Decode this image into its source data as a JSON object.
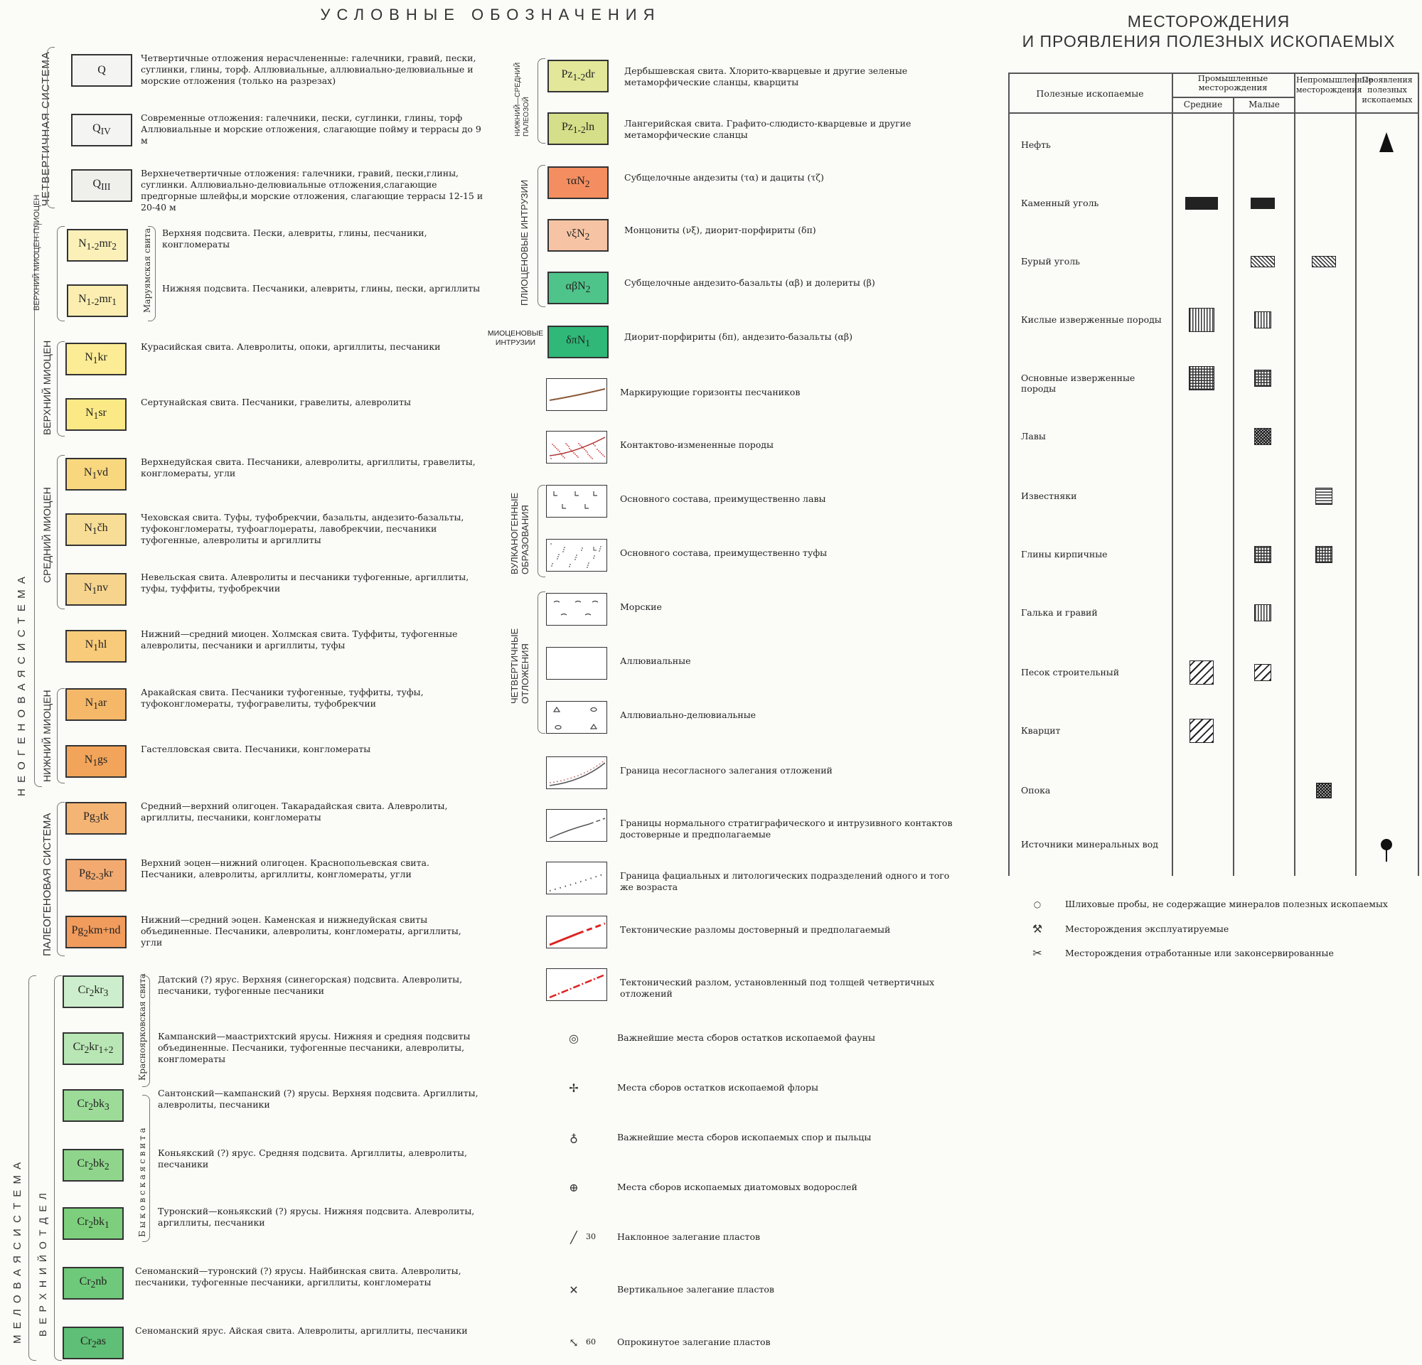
{
  "legend_title": "УСЛОВНЫЕ ОБОЗНАЧЕНИЯ",
  "minerals_title_1": "МЕСТОРОЖДЕНИЯ",
  "minerals_title_2": "И ПРОЯВЛЕНИЯ ПОЛЕЗНЫХ ИСКОПАЕМЫХ",
  "groups": {
    "quaternary": "ЧЕТВЕРТИЧНАЯ СИСТЕМА",
    "neogene": "Н Е О Г Е Н О В А Я   С И С Т Е М А",
    "upper_miocene_pliocene": "ВЕРХНИЙ МИОЦЕН-ПЛИОЦЕН",
    "maruyama": "Маруямская свита",
    "upper_miocene": "ВЕРХНИЙ МИОЦЕН",
    "middle_miocene": "СРЕДНИЙ МИОЦЕН",
    "lower_miocene": "НИЖНИЙ МИОЦЕН",
    "paleogene": "ПАЛЕОГЕНОВАЯ СИСТЕМА",
    "cretaceous": "М Е Л О В А Я   С И С Т Е М А",
    "upper_division": "В Е Р Х Н И Й   О Т Д Е Л",
    "krasnoyarkovskaya": "Красноярковская свита",
    "bykovskaya": "Б ы к о в с к а я   с в и т а",
    "lower_middle_paleozoic": "НИЖНИЙ—СРЕДНИЙ ПАЛЕОЗОЙ",
    "pliocene_intrusions": "ПЛИОЦЕНОВЫЕ ИНТРУЗИИ",
    "miocene_intrusions": "МИОЦЕНОВЫЕ ИНТРУЗИИ",
    "volcanogenic": "ВУЛКАНОГЕННЫЕ ОБРАЗОВАНИЯ",
    "quaternary_deposits": "ЧЕТВЕРТИЧНЫЕ ОТЛОЖЕНИЯ"
  },
  "units_left": [
    {
      "code": "Q",
      "color": "#f4f4f2",
      "desc": "Четвертичные отложения нерасчлененные: галечники, гравий, пески, суглинки, глины, торф. Аллювиальные, аллювиально-делювиальные и морские отложения (только на разрезах)"
    },
    {
      "code": "QIV",
      "color": "#f4f4f2",
      "desc": "Современные отложения: галечники, пески, суглинки, глины, торф Аллювиальные и морские отложения, слагающие пойму и террасы до 9 м"
    },
    {
      "code": "QIII",
      "color": "#efefec",
      "desc": "Верхнечетвертичные отложения: галечники, гравий, пески,глины, суглинки. Аллювиально-делювиальные отложения,слагающие предгорные шлейфы,и морские отложения, слагающие террасы 12-15 и 20-40 м"
    },
    {
      "code": "N1-2mr2",
      "color": "#fbf1b8",
      "desc": "Верхняя подсвита. Пески, алевриты, глины, песчаники, конгломераты"
    },
    {
      "code": "N1-2mr1",
      "color": "#fbeeb0",
      "desc": "Нижняя подсвита. Песчаники, алевриты, глины, пески, аргиллиты"
    },
    {
      "code": "N1kr",
      "color": "#fbec95",
      "desc": "Курасийская свита. Алевролиты, опоки, аргиллиты, песчаники"
    },
    {
      "code": "N1sr",
      "color": "#fbe985",
      "desc": "Сертунайская свита. Песчаники, гравелиты, алевролиты"
    },
    {
      "code": "N1vd",
      "color": "#f8d77f",
      "desc": "Верхнедуйская свита. Песчаники, алевролиты, аргиллиты, гравелиты, конгломераты, угли"
    },
    {
      "code": "N1čh",
      "color": "#f7dd96",
      "desc": "Чеховская свита. Туфы, туфобрекчии, базальты, андезито-базальты, туфоконгломераты, туфоаглομераты, лавобрекчии, песчаники туфогенные, алевролиты и аргиллиты"
    },
    {
      "code": "N1nv",
      "color": "#f6d48d",
      "desc": "Невельская свита. Алевролиты и песчаники туфогенные, аргиллиты, туфы, туффиты, туфобрекчии"
    },
    {
      "code": "N1hl",
      "color": "#f8cb7a",
      "desc": "Нижний—средний миоцен. Холмская свита. Туффиты, туфогенные алевролиты, песчаники и аргиллиты, туфы"
    },
    {
      "code": "N1ar",
      "color": "#f5b869",
      "desc": "Аракайская свита. Песчаники туфогенные, туффиты, туфы, туфоконгломераты, туфогравелиты, туфобрекчии"
    },
    {
      "code": "N1gs",
      "color": "#f2a55a",
      "desc": "Гастелловская свита. Песчаники, конгломераты"
    },
    {
      "code": "Pg3tk",
      "color": "#f4b474",
      "desc": "Средний—верхний олигоцен. Такарадайская свита. Алевролиты, аргиллиты, песчаники, конгломераты"
    },
    {
      "code": "Pg2-3kr",
      "color": "#f3aa70",
      "desc": "Верхний эоцен—нижний олигоцен. Краснопольевская свита. Песчаники, алевролиты, аргиллиты, конгломераты, угли"
    },
    {
      "code": "Pg2km+nd",
      "color": "#f19b5c",
      "desc": "Нижний—средний эоцен. Каменская и нижнедуйская свиты объединенные. Песчаники, алевролиты, конгломераты, аргиллиты, угли"
    },
    {
      "code": "Cr2kr3",
      "color": "#cdeecc",
      "desc": "Датский (?) ярус. Верхняя (синегорская) подсвита. Алевролиты, песчаники, туфогенные песчаники"
    },
    {
      "code": "Cr2kr1+2",
      "color": "#b8e6b4",
      "desc": "Кампанский—маастрихтский ярусы. Нижняя и средняя подсвиты объединенные. Песчаники, туфогенные песчаники, алевролиты, конгломераты"
    },
    {
      "code": "Cr2bk3",
      "color": "#9cdc98",
      "desc": "Сантонский—кампанский (?) ярусы. Верхняя подсвита. Аргиллиты, алевролиты, песчаники"
    },
    {
      "code": "Cr2bk2",
      "color": "#8fd68c",
      "desc": "Коньякский (?) ярус. Средняя подсвита. Аргиллиты, алевролиты, песчаники"
    },
    {
      "code": "Cr2bk1",
      "color": "#7ecf7d",
      "desc": "Туронский—коньякский (?) ярусы. Нижняя подсвита. Алевролиты, аргиллиты, песчаники"
    },
    {
      "code": "Cr2nb",
      "color": "#6fc97a",
      "desc": "Сеноманский—туронский (?) ярусы. Найбинская свита. Алевролиты, песчаники, туфогенные песчаники, аргиллиты, конгломераты"
    },
    {
      "code": "Cr2as",
      "color": "#5fbf76",
      "desc": "Сеноманский ярус. Айская свита. Алевролиты, аргиллиты, песчаники"
    }
  ],
  "units_mid": [
    {
      "code": "Pz1-2dr",
      "color": "#e2e79a",
      "desc": "Дербышевская свита. Хлорито-кварцевые и другие зеленые метаморфические сланцы, кварциты"
    },
    {
      "code": "Pz1-2ln",
      "color": "#d5de88",
      "desc": "Лангерийская свита. Графито-слюдисто-кварцевые и другие метаморфические сланцы"
    },
    {
      "code": "ταN2",
      "color": "#f48e60",
      "desc": "Субщелочные андезиты (τα) и дациты (τζ)"
    },
    {
      "code": "νξN2",
      "color": "#f6c4a4",
      "desc": "Монцониты (νξ), диорит-порфириты (δπ)"
    },
    {
      "code": "αβN2",
      "color": "#4fc48a",
      "desc": "Субщелочные андезито-базальты (αβ) и долериты (β)"
    },
    {
      "code": "δπN1",
      "color": "#2fb878",
      "desc": "Диорит-порфириты (δπ), андезито-базальты (αβ)"
    }
  ],
  "symbols_mid": [
    "Маркирующие горизонты песчаников",
    "Контактово-измененные породы",
    "Основного состава, преимущественно лавы",
    "Основного состава, преимущественно туфы",
    "Морские",
    "Аллювиальные",
    "Аллювиально-делювиальные",
    "Граница несогласного залегания отложений",
    "Границы нормального стратиграфического и интрузивного контактов достоверные и предполагаемые",
    "Граница фациальных и литологических подразделений одного и того же возраста",
    "Тектонические разломы достоверный и предполагаемый",
    "Тектонический разлом, установленный под толщей четвертичных отложений",
    "Важнейшие места сборов остатков ископаемой фауны",
    "Места сборов остатков ископаемой флоры",
    "Важнейшие места сборов ископаемых спор и пыльцы",
    "Места сборов ископаемых диатомовых водорослей",
    "Наклонное залегание пластов",
    "Вертикальное залегание пластов",
    "Опрокинутое залегание пластов"
  ],
  "dip_labels": [
    "30",
    "60"
  ],
  "minerals_table": {
    "col_mineral": "Полезные ископаемые",
    "col_industrial": "Промышленные месторождения",
    "col_medium": "Средние",
    "col_small": "Малые",
    "col_nonindustrial": "Непромышленные месторождения",
    "col_shows": "Проявления полезных ископаемых",
    "rows": [
      "Нефть",
      "Каменный уголь",
      "Бурый уголь",
      "Кислые изверженные породы",
      "Основные изверженные породы",
      "Лавы",
      "Известняки",
      "Глины кирпичные",
      "Галька и гравий",
      "Песок строительный",
      "Кварцит",
      "Опока",
      "Источники минеральных вод"
    ]
  },
  "notes": [
    "Шлиховые пробы, не содержащие минералов полезных ископаемых",
    "Месторождения эксплуатируемые",
    "Месторождения отработанные или законсервированные"
  ],
  "note_icons": [
    "circle-icon",
    "crossed-hammers-icon",
    "crossed-hammers-inverted-icon"
  ]
}
